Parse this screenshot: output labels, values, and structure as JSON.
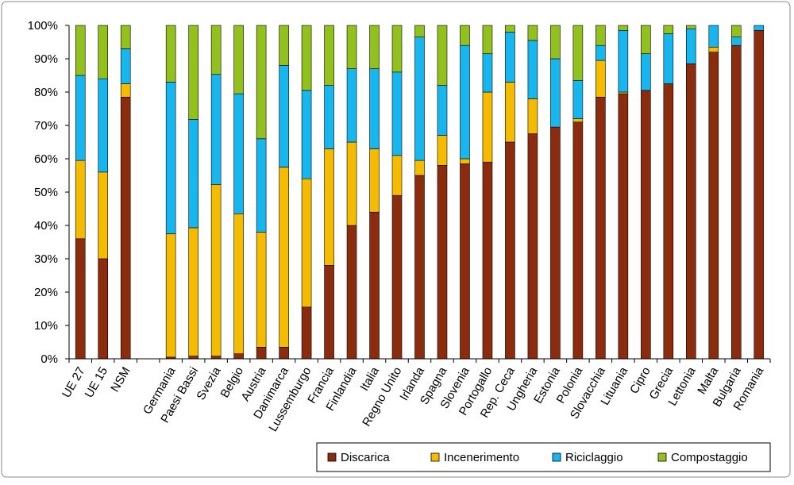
{
  "chart_data": {
    "type": "bar",
    "stacked": true,
    "percent": true,
    "title": "",
    "xlabel": "",
    "ylabel": "",
    "ylim": [
      0,
      100
    ],
    "y_ticks": [
      "0%",
      "10%",
      "20%",
      "30%",
      "40%",
      "50%",
      "60%",
      "70%",
      "80%",
      "90%",
      "100%"
    ],
    "legend_position": "bottom-right",
    "grid": false,
    "categories": [
      "UE 27",
      "UE 15",
      "NSM",
      "",
      "Germania",
      "Paesi Bassi",
      "Svezia",
      "Belgio",
      "Austria",
      "Danimarca",
      "Lussemburgo",
      "Francia",
      "Finlandia",
      "Italia",
      "Regno Unito",
      "Irlanda",
      "Spagna",
      "Slovenia",
      "Portogallo",
      "Rep. Ceca",
      "Ungheria",
      "Estonia",
      "Polonia",
      "Slovacchia",
      "Lituania",
      "Cipro",
      "Grecia",
      "Lettonia",
      "Malta",
      "Bulgaria",
      "Romania"
    ],
    "series": [
      {
        "name": "Discarica",
        "color": "#8b2c0e",
        "values": [
          36,
          30,
          78.5,
          0,
          0.5,
          0.8,
          0.8,
          1.5,
          3.5,
          3.5,
          15.5,
          28,
          40,
          44,
          49,
          55,
          58,
          58.5,
          59,
          65,
          67.5,
          69.5,
          71,
          78.5,
          79.5,
          80.5,
          82.5,
          88.5,
          92,
          94,
          98.5
        ]
      },
      {
        "name": "Incenerimento",
        "color": "#f5bb00",
        "values": [
          23.5,
          26,
          4,
          0,
          37,
          38.5,
          51.5,
          42,
          34.5,
          54,
          38.5,
          35,
          25,
          19,
          12,
          4.5,
          9,
          1.5,
          21,
          18,
          10.5,
          0,
          1,
          11,
          0.5,
          0,
          0,
          0,
          1.5,
          0,
          0
        ]
      },
      {
        "name": "Riciclaggio",
        "color": "#17b6ef",
        "values": [
          25.5,
          28,
          10.5,
          0,
          45.5,
          32.5,
          33,
          36,
          28,
          30.5,
          26.5,
          19,
          22,
          24,
          25,
          37,
          15,
          34,
          11.5,
          15,
          17.5,
          20.5,
          11.5,
          4.5,
          18.5,
          11,
          15,
          10.5,
          6.5,
          2.5,
          1.5
        ]
      },
      {
        "name": "Compostaggio",
        "color": "#92c01d",
        "values": [
          15,
          16,
          7,
          0,
          17,
          28.2,
          14.7,
          20.5,
          34,
          12,
          19.5,
          18,
          13,
          13,
          14,
          3.5,
          18,
          6,
          8.5,
          2,
          4.5,
          10,
          16.5,
          6,
          1.5,
          8.5,
          2.5,
          1,
          0,
          3.5,
          0
        ]
      }
    ]
  }
}
